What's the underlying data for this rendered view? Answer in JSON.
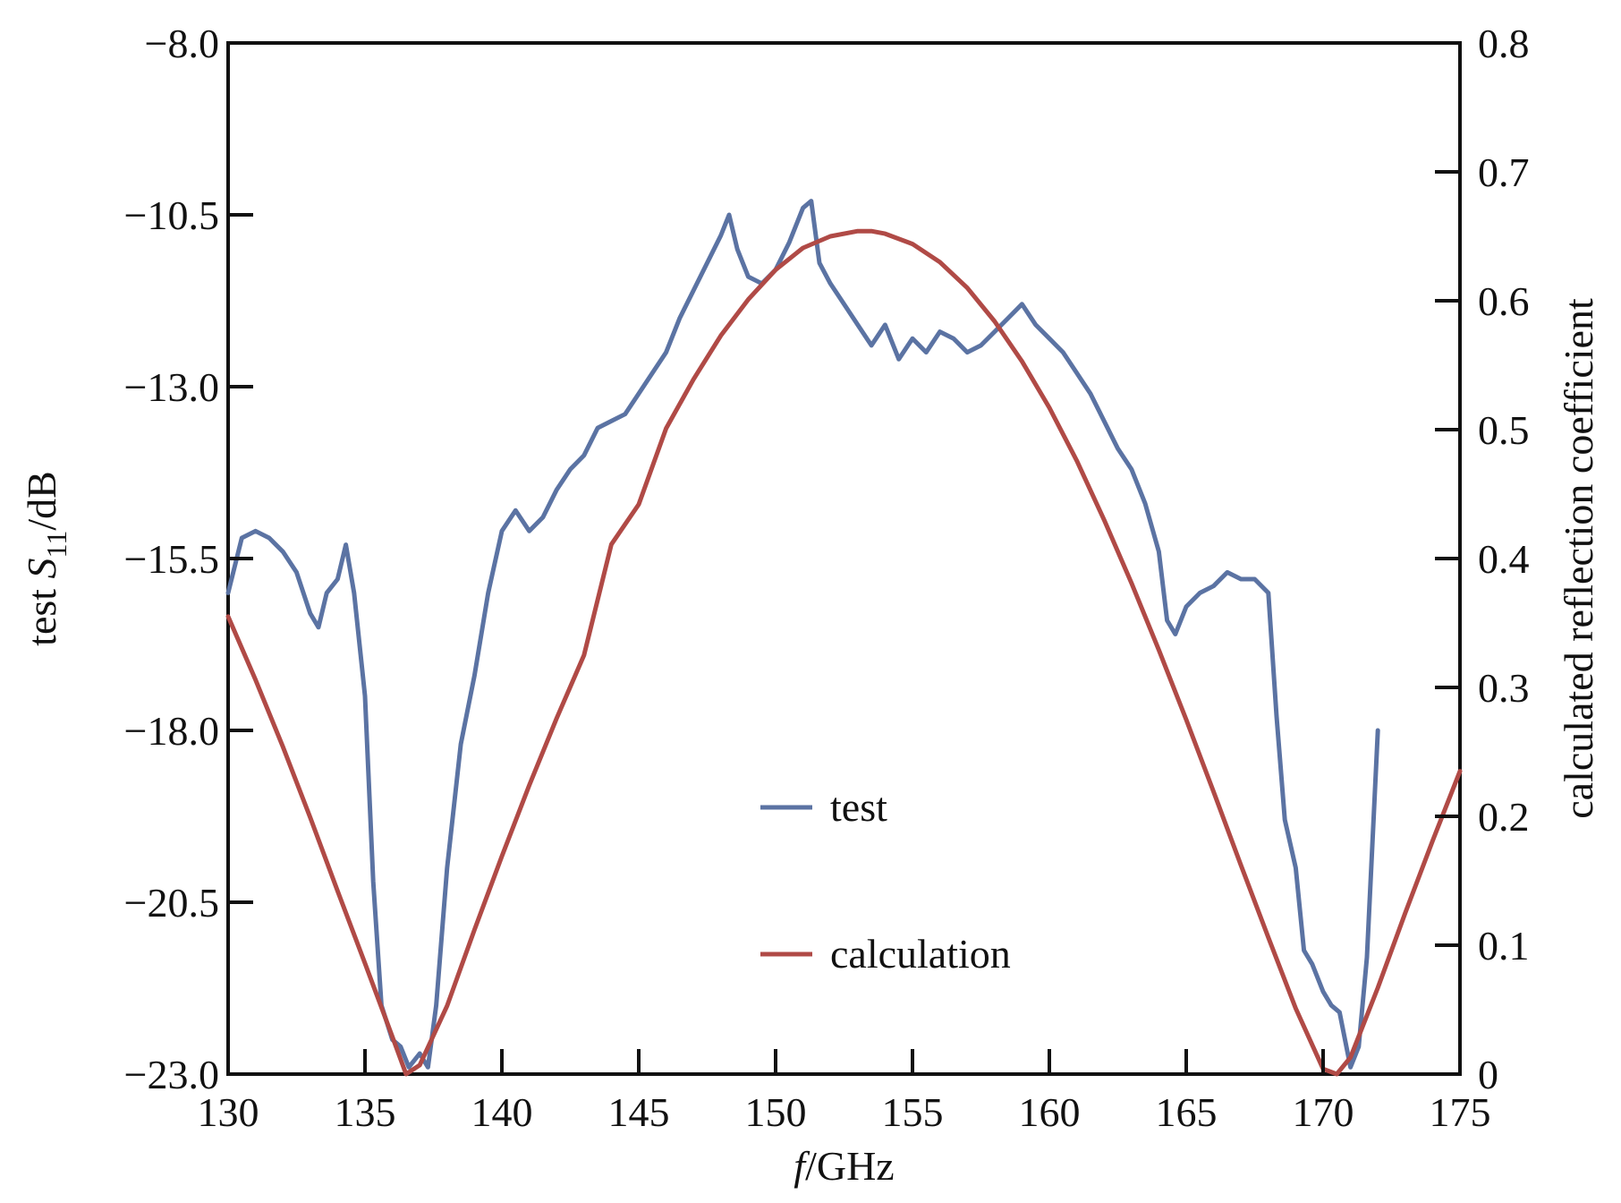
{
  "chart_data": {
    "type": "line",
    "title": "",
    "x_axis": {
      "label_italic": "f",
      "label_rest": "/GHz",
      "range": [
        130,
        175
      ],
      "ticks": [
        130,
        135,
        140,
        145,
        150,
        155,
        160,
        165,
        170,
        175
      ],
      "tick_labels": [
        "130",
        "135",
        "140",
        "145",
        "150",
        "155",
        "160",
        "165",
        "170",
        "175"
      ]
    },
    "y_left": {
      "label_prefix": "test ",
      "label_symbol": "S",
      "label_subscript": "11",
      "label_suffix": "/dB",
      "range": [
        -23.0,
        -8.0
      ],
      "ticks": [
        -8.0,
        -10.5,
        -13.0,
        -15.5,
        -18.0,
        -20.5,
        -23.0
      ],
      "tick_labels": [
        "−8.0",
        "−10.5",
        "−13.0",
        "−15.5",
        "−18.0",
        "−20.5",
        "−23.0"
      ]
    },
    "y_right": {
      "label": "calculated reflection coefficient",
      "range": [
        0,
        0.8
      ],
      "ticks": [
        0,
        0.1,
        0.2,
        0.3,
        0.4,
        0.5,
        0.6,
        0.7,
        0.8
      ],
      "tick_labels": [
        "0",
        "0.1",
        "0.2",
        "0.3",
        "0.4",
        "0.5",
        "0.6",
        "0.7",
        "0.8"
      ]
    },
    "legend": {
      "position": "center-bottom"
    },
    "series": [
      {
        "name": "test",
        "axis": "left",
        "color": "#5b73a3",
        "x": [
          130.0,
          130.5,
          131.0,
          131.5,
          132.0,
          132.5,
          133.0,
          133.3,
          133.6,
          134.0,
          134.3,
          134.6,
          135.0,
          135.3,
          135.6,
          136.0,
          136.3,
          136.6,
          137.0,
          137.3,
          137.6,
          138.0,
          138.5,
          139.0,
          139.5,
          140.0,
          140.5,
          141.0,
          141.5,
          142.0,
          142.5,
          143.0,
          143.5,
          144.0,
          144.5,
          145.0,
          145.5,
          146.0,
          146.5,
          147.0,
          147.5,
          148.0,
          148.3,
          148.6,
          149.0,
          149.5,
          150.0,
          150.5,
          151.0,
          151.3,
          151.6,
          152.0,
          152.5,
          153.0,
          153.5,
          154.0,
          154.5,
          155.0,
          155.5,
          156.0,
          156.5,
          157.0,
          157.5,
          158.0,
          158.5,
          159.0,
          159.5,
          160.0,
          160.5,
          161.0,
          161.5,
          162.0,
          162.5,
          163.0,
          163.5,
          164.0,
          164.3,
          164.6,
          165.0,
          165.5,
          166.0,
          166.5,
          167.0,
          167.5,
          168.0,
          168.3,
          168.6,
          169.0,
          169.3,
          169.6,
          170.0,
          170.3,
          170.6,
          171.0,
          171.3,
          171.6,
          172.0
        ],
        "y": [
          -16.0,
          -15.2,
          -15.1,
          -15.2,
          -15.4,
          -15.7,
          -16.3,
          -16.5,
          -16.0,
          -15.8,
          -15.3,
          -16.0,
          -17.5,
          -20.2,
          -22.0,
          -22.5,
          -22.6,
          -22.9,
          -22.7,
          -22.9,
          -22.0,
          -20.0,
          -18.2,
          -17.2,
          -16.0,
          -15.1,
          -14.8,
          -15.1,
          -14.9,
          -14.5,
          -14.2,
          -14.0,
          -13.6,
          -13.5,
          -13.4,
          -13.1,
          -12.8,
          -12.5,
          -12.0,
          -11.6,
          -11.2,
          -10.8,
          -10.5,
          -11.0,
          -11.4,
          -11.5,
          -11.3,
          -10.9,
          -10.4,
          -10.3,
          -11.2,
          -11.5,
          -11.8,
          -12.1,
          -12.4,
          -12.1,
          -12.6,
          -12.3,
          -12.5,
          -12.2,
          -12.3,
          -12.5,
          -12.4,
          -12.2,
          -12.0,
          -11.8,
          -12.1,
          -12.3,
          -12.5,
          -12.8,
          -13.1,
          -13.5,
          -13.9,
          -14.2,
          -14.7,
          -15.4,
          -16.4,
          -16.6,
          -16.2,
          -16.0,
          -15.9,
          -15.7,
          -15.8,
          -15.8,
          -16.0,
          -17.8,
          -19.3,
          -20.0,
          -21.2,
          -21.4,
          -21.8,
          -22.0,
          -22.1,
          -22.9,
          -22.6,
          -21.3,
          -18.0
        ]
      },
      {
        "name": "calculation",
        "axis": "right",
        "color": "#b04a46",
        "x": [
          130.0,
          131.0,
          132.0,
          133.0,
          134.0,
          135.0,
          136.0,
          136.5,
          137.0,
          138.0,
          139.0,
          140.0,
          141.0,
          142.0,
          143.0,
          144.0,
          145.0,
          146.0,
          147.0,
          148.0,
          149.0,
          150.0,
          151.0,
          152.0,
          153.0,
          153.5,
          154.0,
          155.0,
          156.0,
          157.0,
          158.0,
          159.0,
          160.0,
          161.0,
          162.0,
          163.0,
          164.0,
          165.0,
          166.0,
          167.0,
          168.0,
          169.0,
          170.0,
          170.5,
          171.0,
          172.0,
          173.0,
          174.0,
          175.0
        ],
        "y": [
          0.355,
          0.306,
          0.254,
          0.199,
          0.142,
          0.086,
          0.029,
          0.0,
          0.007,
          0.053,
          0.112,
          0.169,
          0.224,
          0.276,
          0.325,
          0.411,
          0.442,
          0.501,
          0.539,
          0.573,
          0.601,
          0.624,
          0.641,
          0.65,
          0.654,
          0.654,
          0.652,
          0.644,
          0.63,
          0.61,
          0.584,
          0.553,
          0.517,
          0.476,
          0.43,
          0.381,
          0.329,
          0.275,
          0.219,
          0.162,
          0.106,
          0.051,
          0.004,
          0.0,
          0.013,
          0.067,
          0.125,
          0.181,
          0.235
        ]
      }
    ]
  }
}
